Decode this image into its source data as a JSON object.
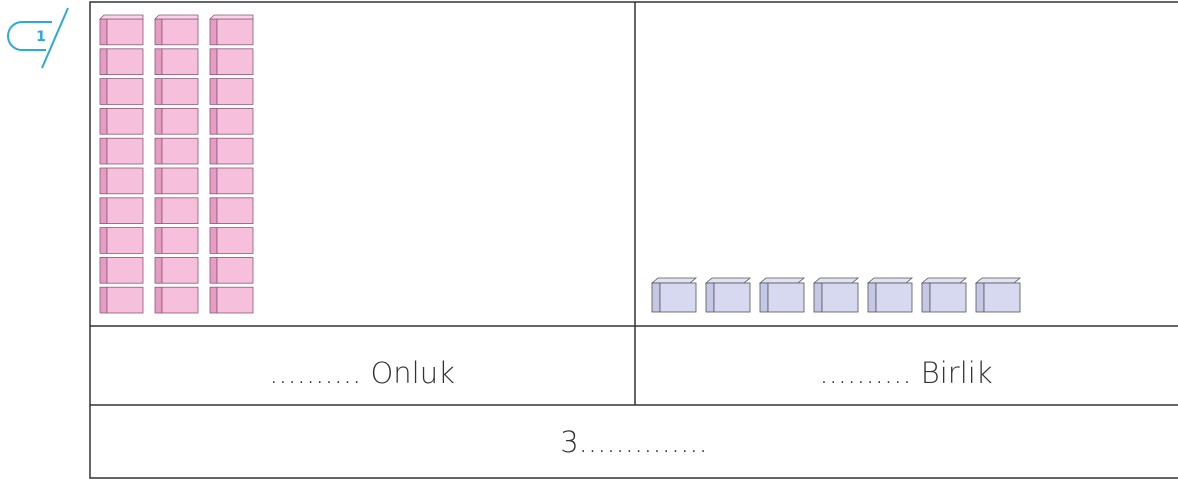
{
  "badge": "1",
  "table": {
    "rows": [
      [
        ".......... Onluk",
        ".......... Birlik"
      ],
      [
        "3.............."
      ]
    ]
  }
}
